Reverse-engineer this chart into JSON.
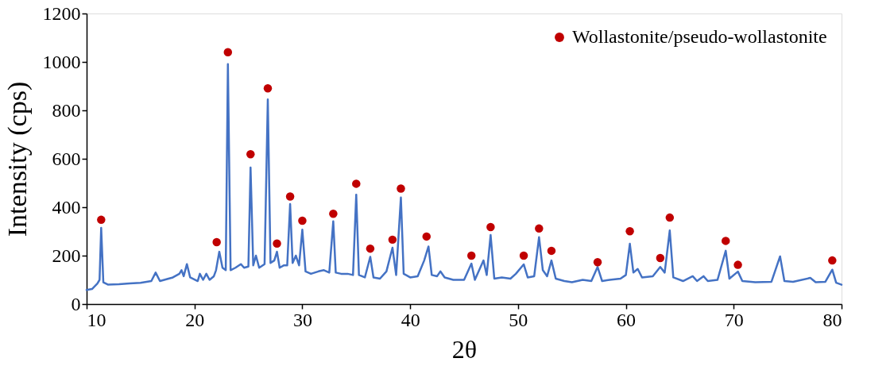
{
  "chart_data": {
    "type": "line",
    "xlabel": "2θ",
    "ylabel": "Intensity (cps)",
    "xlim": [
      10,
      80
    ],
    "xticks": [
      10,
      20,
      30,
      40,
      50,
      60,
      70,
      80
    ],
    "ylim": [
      0,
      1200
    ],
    "yticks": [
      0,
      200,
      400,
      600,
      800,
      1000,
      1200
    ],
    "grid": false,
    "legend": "top right",
    "series": [
      {
        "color": "#4472c4",
        "marker": "none",
        "line_style": "solid",
        "x": [
          10,
          10.5,
          11.0,
          11.2,
          11.35,
          11.55,
          12,
          13,
          14,
          15,
          16,
          16.4,
          16.8,
          18,
          18.6,
          18.8,
          19.0,
          19.3,
          19.6,
          20.3,
          20.5,
          20.8,
          21.1,
          21.4,
          21.8,
          22.0,
          22.3,
          22.6,
          22.9,
          23.1,
          23.35,
          23.8,
          24.3,
          24.6,
          25.0,
          25.2,
          25.45,
          25.7,
          26.0,
          26.5,
          26.8,
          27.05,
          27.4,
          27.65,
          27.9,
          28.3,
          28.6,
          28.87,
          29.1,
          29.4,
          29.7,
          30.0,
          30.3,
          30.8,
          31.5,
          32.0,
          32.5,
          32.87,
          33.1,
          33.6,
          34.2,
          34.7,
          35.0,
          35.25,
          35.8,
          36.3,
          36.6,
          37.2,
          37.8,
          38.36,
          38.7,
          39.14,
          39.4,
          40,
          40.7,
          41.3,
          41.7,
          42.0,
          42.5,
          42.8,
          43.2,
          44,
          45.0,
          45.68,
          46.0,
          46.8,
          47.1,
          47.46,
          47.8,
          48.5,
          49.3,
          49.8,
          50.53,
          50.9,
          51.5,
          51.95,
          52.3,
          52.7,
          53.1,
          53.5,
          54.3,
          55,
          56,
          56.8,
          57.38,
          57.8,
          58.5,
          59.5,
          60.0,
          60.37,
          60.7,
          61.1,
          61.5,
          62.5,
          63.19,
          63.6,
          64.07,
          64.4,
          65.3,
          66.2,
          66.6,
          67.2,
          67.6,
          68.5,
          69.26,
          69.6,
          70.39,
          70.8,
          72,
          73.5,
          74.3,
          74.7,
          75.5,
          77.1,
          77.6,
          78.5,
          79.14,
          79.5,
          80
        ],
        "values": [
          58,
          62,
          85,
          100,
          315,
          90,
          80,
          82,
          85,
          88,
          95,
          130,
          95,
          110,
          125,
          140,
          115,
          165,
          110,
          95,
          125,
          100,
          125,
          100,
          115,
          140,
          216,
          150,
          140,
          991,
          140,
          150,
          165,
          150,
          155,
          564,
          160,
          200,
          150,
          165,
          845,
          170,
          180,
          216,
          150,
          160,
          160,
          413,
          170,
          200,
          160,
          307,
          135,
          125,
          135,
          140,
          130,
          342,
          130,
          125,
          125,
          120,
          452,
          120,
          110,
          195,
          110,
          105,
          135,
          233,
          120,
          440,
          125,
          110,
          115,
          180,
          238,
          120,
          115,
          135,
          110,
          100,
          100,
          167,
          100,
          180,
          120,
          285,
          105,
          110,
          105,
          125,
          164,
          110,
          115,
          276,
          140,
          115,
          180,
          105,
          95,
          90,
          100,
          95,
          153,
          95,
          100,
          105,
          120,
          249,
          130,
          145,
          110,
          115,
          153,
          130,
          304,
          110,
          95,
          115,
          95,
          115,
          95,
          100,
          220,
          105,
          134,
          95,
          90,
          92,
          197,
          95,
          92,
          108,
          90,
          92,
          142,
          88,
          80
        ]
      },
      {
        "type": "scatter",
        "name": "Wollastonite/pseudo-wollastonite",
        "color": "#c00000",
        "marker": "circle",
        "x": [
          11.35,
          22.06,
          23.1,
          25.2,
          26.8,
          27.65,
          28.87,
          30.0,
          32.87,
          35.0,
          36.3,
          38.36,
          39.14,
          41.52,
          45.68,
          47.46,
          50.53,
          51.95,
          53.1,
          57.38,
          60.37,
          63.19,
          64.07,
          69.26,
          70.39,
          79.14
        ],
        "values": [
          348,
          256,
          1040,
          619,
          891,
          250,
          444,
          344,
          373,
          497,
          229,
          266,
          477,
          279,
          200,
          318,
          200,
          312,
          220,
          173,
          301,
          190,
          357,
          261,
          162,
          180
        ]
      }
    ]
  }
}
